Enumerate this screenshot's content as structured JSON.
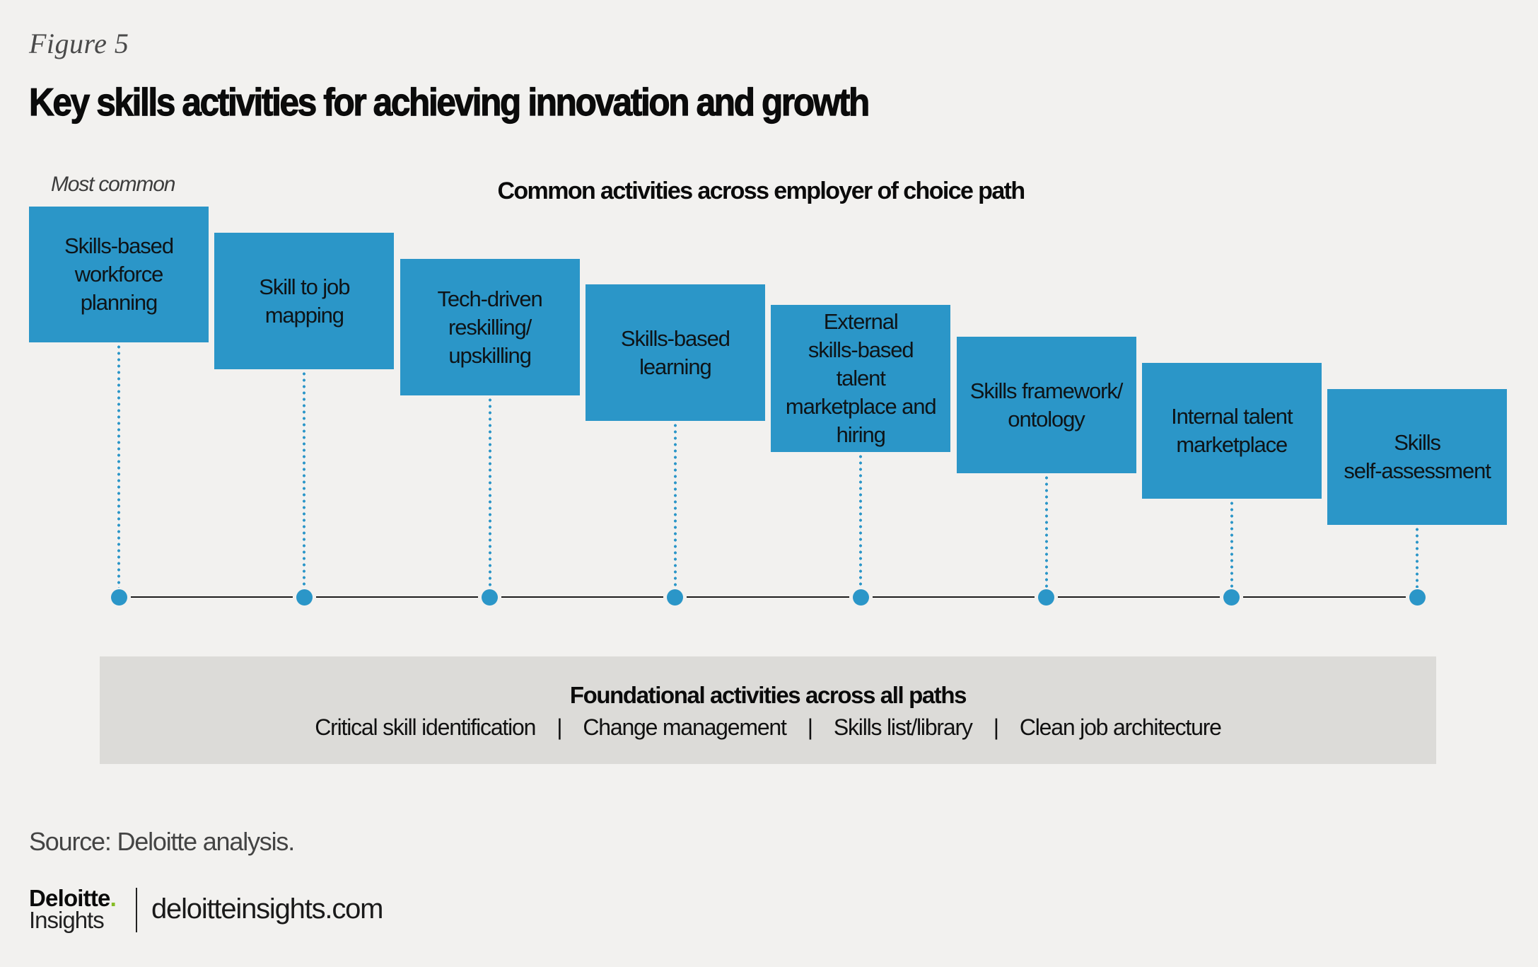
{
  "figure_label": "Figure 5",
  "title": "Key skills activities for achieving innovation and growth",
  "most_common_label": "Most common",
  "common_heading": "Common activities across employer of choice path",
  "colors": {
    "box_fill": "#2b96c8",
    "background": "#f2f1ef",
    "foundation_fill": "#dcdbd8",
    "timeline_line": "#1c1c1c",
    "logo_dot": "#86bc25"
  },
  "activities": [
    {
      "rank": 1,
      "label": "Skills-based\nworkforce\nplanning"
    },
    {
      "rank": 2,
      "label": "Skill to job\nmapping"
    },
    {
      "rank": 3,
      "label": "Tech-driven\nreskilling/\nupskilling"
    },
    {
      "rank": 4,
      "label": "Skills-based\nlearning"
    },
    {
      "rank": 5,
      "label": "External\nskills-based\ntalent\nmarketplace and\nhiring"
    },
    {
      "rank": 6,
      "label": "Skills framework/\nontology"
    },
    {
      "rank": 7,
      "label": "Internal talent\nmarketplace"
    },
    {
      "rank": 8,
      "label": "Skills\nself-assessment"
    }
  ],
  "foundation": {
    "title": "Foundational activities across all paths",
    "items": [
      "Critical skill identification",
      "Change management",
      "Skills list/library",
      "Clean job architecture"
    ],
    "separator": "|"
  },
  "source": "Source: Deloitte analysis.",
  "logo": {
    "brand": "Deloitte",
    "dot": ".",
    "sub": "Insights"
  },
  "url": "deloitteinsights.com"
}
